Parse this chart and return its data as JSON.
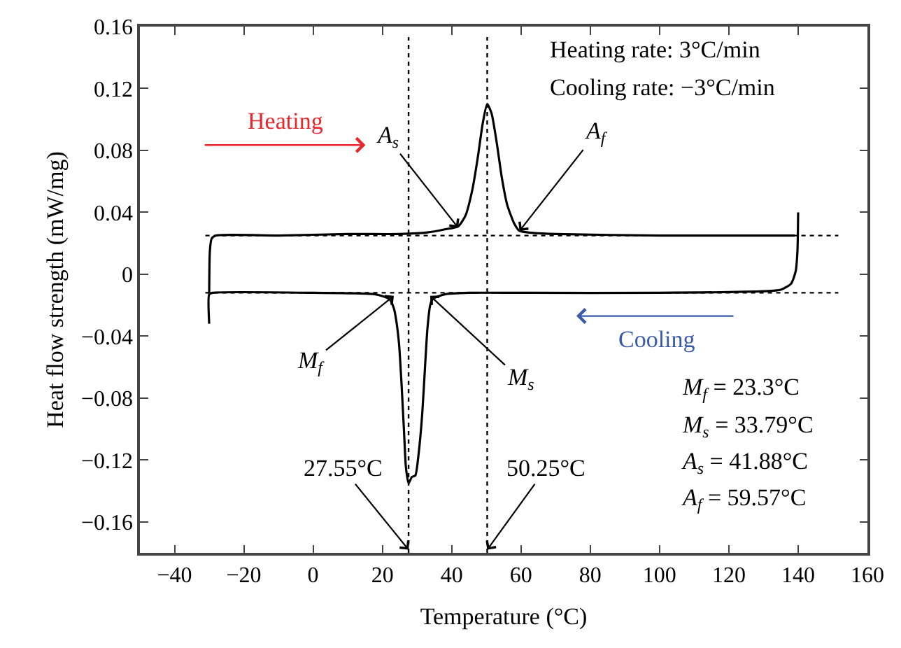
{
  "chart_data": {
    "type": "line",
    "xlabel": "Temperature (°C)",
    "ylabel": "Heat flow strength (mW/mg)",
    "xlim": [
      -50,
      160
    ],
    "xticks": [
      -40,
      -20,
      0,
      20,
      40,
      60,
      80,
      100,
      120,
      140,
      160
    ],
    "ylim": [
      -0.18,
      0.16
    ],
    "yticks": [
      -0.16,
      -0.12,
      -0.08,
      -0.04,
      0,
      0.04,
      0.08,
      0.12,
      0.16
    ],
    "marker": "none",
    "line_style": "solid",
    "series": [
      {
        "color": "#000000",
        "x": [
          -30,
          -29.8,
          -29.3,
          -28,
          -10,
          10,
          25,
          33,
          38,
          41.88,
          44,
          46,
          47.5,
          49,
          50.25,
          51.5,
          53,
          54.5,
          56,
          58,
          59.57,
          62,
          70,
          100,
          139
        ],
        "values": [
          -0.012,
          0.015,
          0.023,
          0.025,
          0.025,
          0.026,
          0.026,
          0.027,
          0.029,
          0.031,
          0.038,
          0.055,
          0.075,
          0.098,
          0.11,
          0.104,
          0.085,
          0.062,
          0.045,
          0.033,
          0.028,
          0.027,
          0.026,
          0.025,
          0.025
        ]
      },
      {
        "color": "#000000",
        "x": [
          140,
          139.8,
          139.3,
          138,
          135,
          130,
          100,
          60,
          45,
          38,
          34.5,
          33.79,
          33,
          32.3,
          31.5,
          30.5,
          29.5,
          28.5,
          27.55,
          26.8,
          26.2,
          25.5,
          24.8,
          24,
          23.3,
          22,
          18,
          0,
          -29,
          -30,
          -30
        ],
        "values": [
          0.04,
          0.015,
          0.002,
          -0.006,
          -0.01,
          -0.011,
          -0.012,
          -0.012,
          -0.012,
          -0.013,
          -0.016,
          -0.02,
          -0.035,
          -0.06,
          -0.09,
          -0.115,
          -0.13,
          -0.131,
          -0.135,
          -0.125,
          -0.1,
          -0.07,
          -0.045,
          -0.03,
          -0.022,
          -0.016,
          -0.013,
          -0.012,
          -0.012,
          -0.013,
          -0.032
        ]
      }
    ],
    "ref_lines": [
      {
        "axis": "y",
        "value": 0.025,
        "color": "#000000",
        "line_style": "dotted"
      },
      {
        "axis": "y",
        "value": -0.012,
        "color": "#000000",
        "line_style": "dotted"
      },
      {
        "axis": "x",
        "value": 50.25,
        "color": "#000000",
        "line_style": "dotted"
      },
      {
        "axis": "x",
        "value": 27.55,
        "color": "#000000",
        "line_style": "dotted"
      }
    ],
    "annotations": [
      "Heating rate: 3°C/min",
      "Cooling rate: −3°C/min",
      "Heating",
      "Cooling",
      "M$_{f}$ = 23.3°C",
      "M$_{s}$ = 33.79°C",
      "A$_{s}$ = 41.88°C",
      "A$_{f}$ = 59.57°C",
      {
        "text": "A$_{s}$",
        "x": 41.88,
        "y": 0.03
      },
      {
        "text": "A$_{f}$",
        "x": 59.57,
        "y": 0.028
      },
      {
        "text": "M$_{f}$",
        "x": 23.3,
        "y": -0.014
      },
      {
        "text": "M$_{s}$",
        "x": 33.79,
        "y": -0.014
      },
      {
        "text": "27.55°C",
        "x": 27.55,
        "y": -0.178
      },
      {
        "text": "50.25°C",
        "x": 50.25,
        "y": -0.178
      }
    ]
  }
}
